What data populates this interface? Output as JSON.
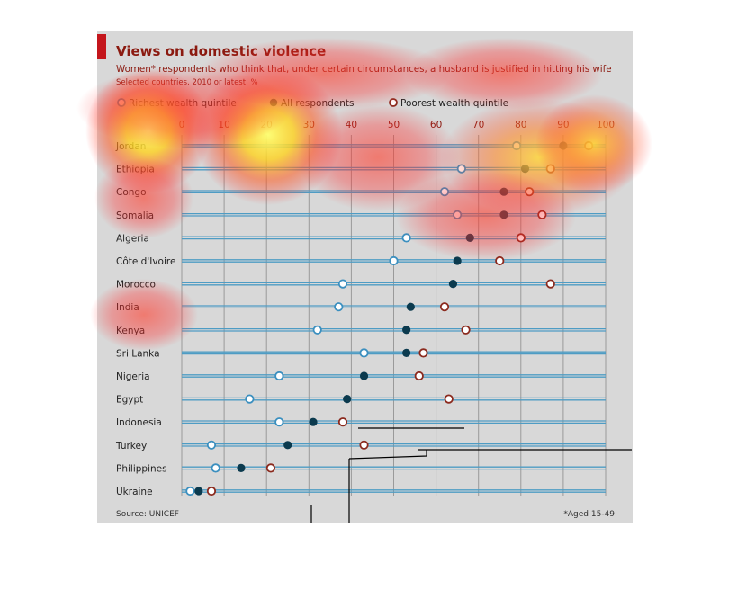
{
  "chart_data": {
    "type": "scatter",
    "title": "Views on domestic violence",
    "subtitle": "Women* respondents who think that, under certain circumstances, a husband is justified in hitting his wife",
    "note": "Selected countries, 2010 or latest, %",
    "source": "Source: UNICEF",
    "footnote": "*Aged 15-49",
    "xlim": [
      0,
      100
    ],
    "x_ticks": [
      0,
      10,
      20,
      30,
      40,
      50,
      60,
      70,
      80,
      90,
      100
    ],
    "grid": true,
    "legend_position": "top-left",
    "series": [
      {
        "name": "Richest wealth quintile",
        "style": "open-blue",
        "color": "#3b8fbf"
      },
      {
        "name": "All respondents",
        "style": "filled-navy",
        "color": "#0b3a4e"
      },
      {
        "name": "Poorest wealth quintile",
        "style": "open-red",
        "color": "#8b2a1e"
      }
    ],
    "categories": [
      "Jordan",
      "Ethiopia",
      "Congo",
      "Somalia",
      "Algeria",
      "Côte d'Ivoire",
      "Morocco",
      "India",
      "Kenya",
      "Sri Lanka",
      "Nigeria",
      "Egypt",
      "Indonesia",
      "Turkey",
      "Philippines",
      "Ukraine"
    ],
    "values": {
      "richest": [
        79,
        66,
        62,
        65,
        53,
        50,
        38,
        37,
        32,
        43,
        23,
        16,
        23,
        7,
        8,
        2
      ],
      "all": [
        90,
        81,
        76,
        76,
        68,
        65,
        64,
        54,
        53,
        53,
        43,
        39,
        31,
        25,
        14,
        4
      ],
      "poorest": [
        96,
        87,
        82,
        85,
        80,
        75,
        87,
        62,
        67,
        57,
        56,
        63,
        38,
        43,
        21,
        7
      ]
    }
  },
  "colors": {
    "background": "#d8d8d8",
    "title": "#8b1a10",
    "accent_bar": "#c4161c",
    "line": "#4e9cc4",
    "grid": "#9a9a9a"
  }
}
